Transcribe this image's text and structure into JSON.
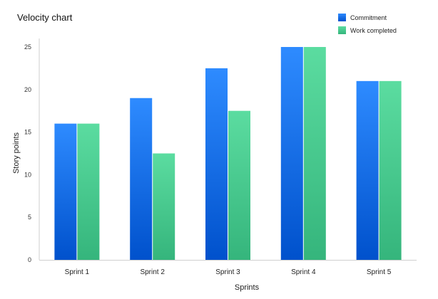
{
  "chart_data": {
    "type": "bar",
    "title": "Velocity chart",
    "xlabel": "Sprints",
    "ylabel": "Story points",
    "categories": [
      "Sprint 1",
      "Sprint 2",
      "Sprint 3",
      "Sprint 4",
      "Sprint 5"
    ],
    "series": [
      {
        "name": "Commitment",
        "values": [
          16,
          19,
          22.5,
          25,
          21
        ],
        "color": "#1a73e8"
      },
      {
        "name": "Work completed",
        "values": [
          16,
          12.5,
          17.5,
          25,
          21
        ],
        "color": "#46c98e"
      }
    ],
    "ylim": [
      0,
      25
    ],
    "yticks": [
      "0",
      "5",
      "10",
      "15",
      "20",
      "25"
    ],
    "grid": false,
    "legend_position": "top-right"
  }
}
